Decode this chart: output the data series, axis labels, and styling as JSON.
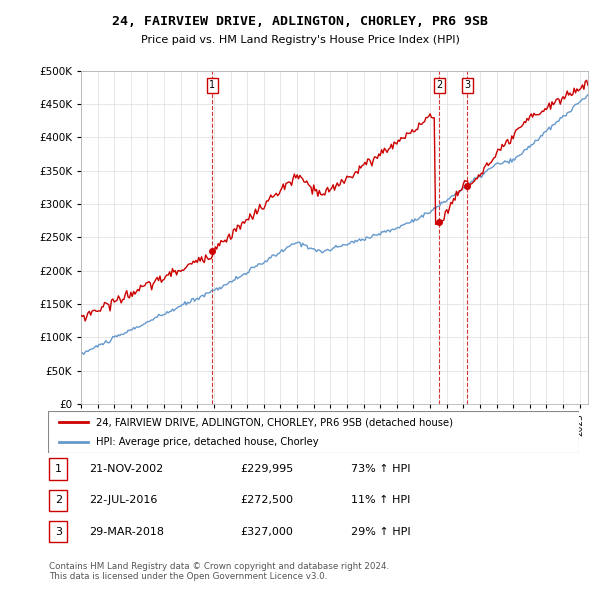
{
  "title": "24, FAIRVIEW DRIVE, ADLINGTON, CHORLEY, PR6 9SB",
  "subtitle": "Price paid vs. HM Land Registry's House Price Index (HPI)",
  "ylim": [
    0,
    500000
  ],
  "yticks": [
    0,
    50000,
    100000,
    150000,
    200000,
    250000,
    300000,
    350000,
    400000,
    450000,
    500000
  ],
  "xlim_start": 1995.0,
  "xlim_end": 2025.5,
  "sale_dates": [
    2002.896,
    2016.556,
    2018.247
  ],
  "sale_prices": [
    229995,
    272500,
    327000
  ],
  "sale_labels": [
    "1",
    "2",
    "3"
  ],
  "legend_property": "24, FAIRVIEW DRIVE, ADLINGTON, CHORLEY, PR6 9SB (detached house)",
  "legend_hpi": "HPI: Average price, detached house, Chorley",
  "table_rows": [
    [
      "1",
      "21-NOV-2002",
      "£229,995",
      "73% ↑ HPI"
    ],
    [
      "2",
      "22-JUL-2016",
      "£272,500",
      "11% ↑ HPI"
    ],
    [
      "3",
      "29-MAR-2018",
      "£327,000",
      "29% ↑ HPI"
    ]
  ],
  "footer": "Contains HM Land Registry data © Crown copyright and database right 2024.\nThis data is licensed under the Open Government Licence v3.0.",
  "property_color": "#cc0000",
  "hpi_color": "#6699cc",
  "background_color": "#ffffff",
  "grid_color": "#dddddd"
}
